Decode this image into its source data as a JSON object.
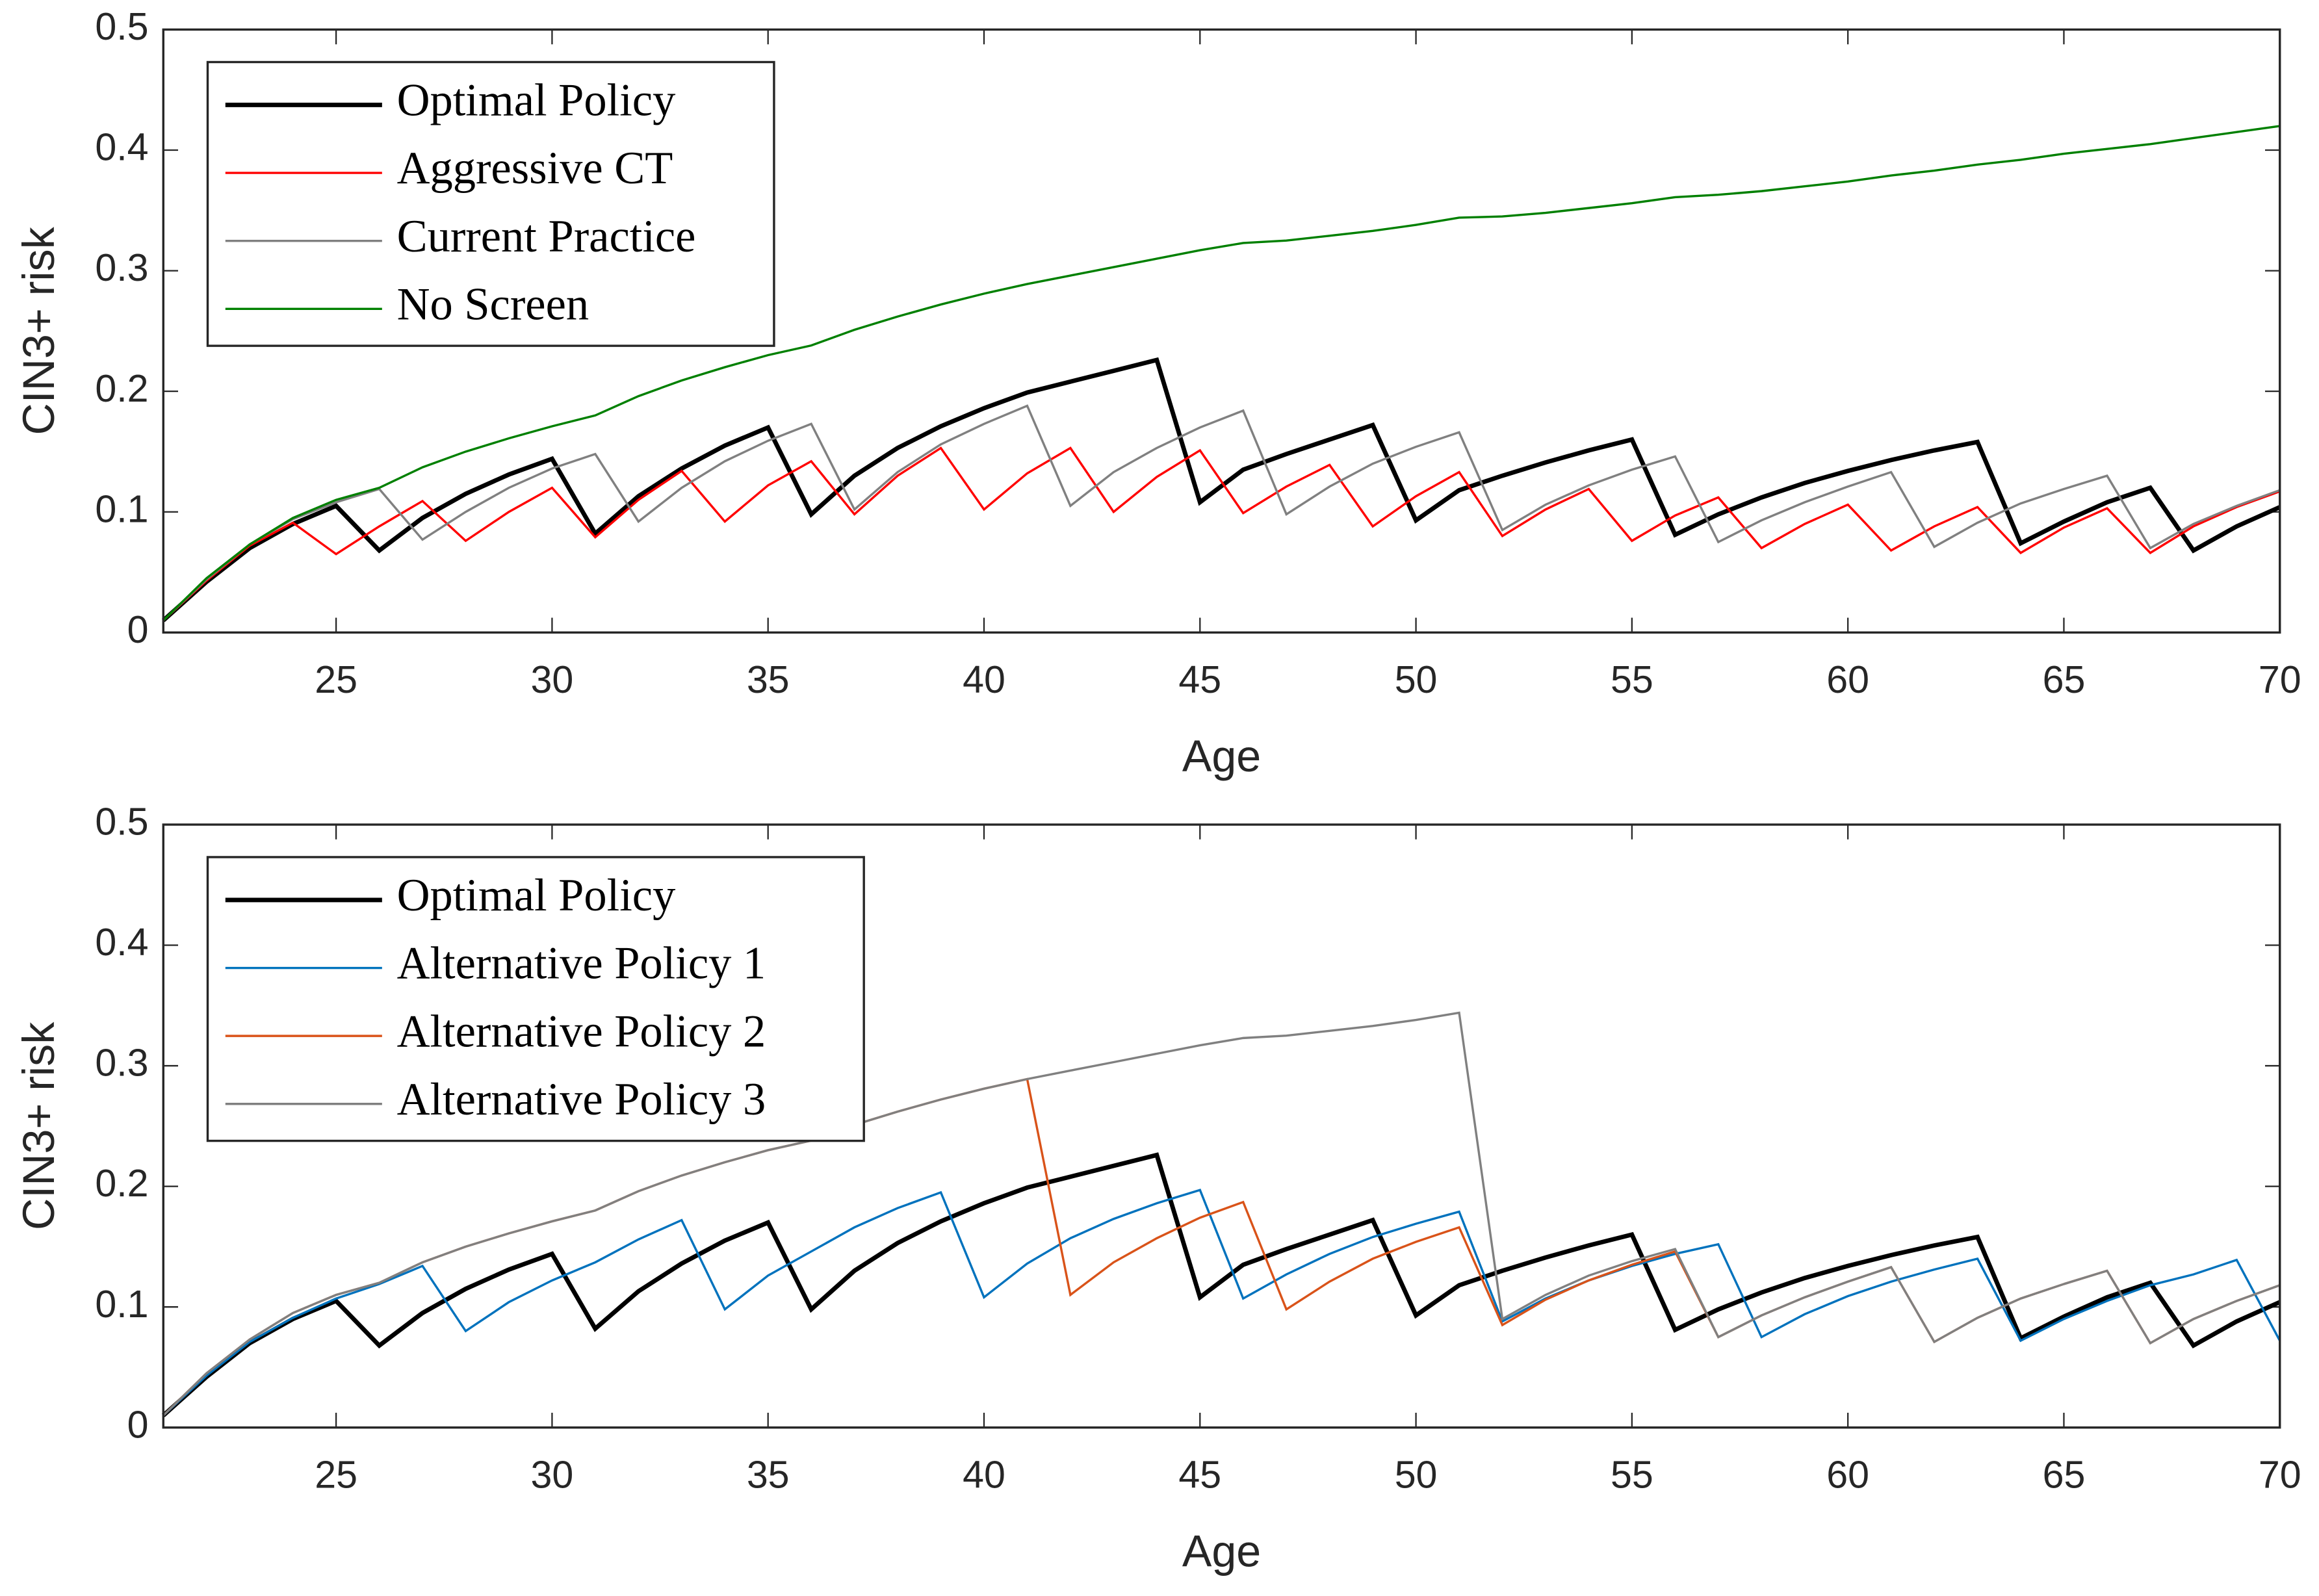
{
  "chart_data": [
    {
      "type": "line",
      "xlabel": "Age",
      "ylabel": "CIN3+ risk",
      "legend": "upper left",
      "xlim": [
        21,
        70
      ],
      "ylim": [
        0,
        0.5
      ],
      "xticks": [
        25,
        30,
        35,
        40,
        45,
        50,
        55,
        60,
        65,
        70
      ],
      "yticks": [
        0,
        0.1,
        0.2,
        0.3,
        0.4,
        0.5
      ],
      "x": [
        21,
        22,
        23,
        24,
        25,
        26,
        27,
        28,
        29,
        30,
        31,
        32,
        33,
        34,
        35,
        36,
        37,
        38,
        39,
        40,
        41,
        42,
        43,
        44,
        45,
        46,
        47,
        48,
        49,
        50,
        51,
        52,
        53,
        54,
        55,
        56,
        57,
        58,
        59,
        60,
        61,
        62,
        63,
        64,
        65,
        66,
        67,
        68,
        69,
        70
      ],
      "series": [
        {
          "name": "Optimal Policy",
          "color": "#000000",
          "width": 3,
          "values": [
            0.01,
            0.042,
            0.07,
            0.09,
            0.105,
            0.068,
            0.095,
            0.115,
            0.131,
            0.144,
            0.082,
            0.113,
            0.136,
            0.155,
            0.17,
            0.098,
            0.13,
            0.153,
            0.171,
            0.186,
            0.199,
            0.208,
            0.217,
            0.226,
            0.108,
            0.135,
            0.148,
            0.16,
            0.172,
            0.093,
            0.118,
            0.13,
            0.141,
            0.151,
            0.16,
            0.081,
            0.098,
            0.112,
            0.124,
            0.134,
            0.143,
            0.151,
            0.158,
            0.074,
            0.092,
            0.108,
            0.12,
            0.068,
            0.088,
            0.104
          ]
        },
        {
          "name": "Aggressive CT",
          "color": "#ff0000",
          "width": 1.5,
          "values": [
            0.01,
            0.043,
            0.072,
            0.091,
            0.065,
            0.088,
            0.109,
            0.076,
            0.1,
            0.12,
            0.079,
            0.11,
            0.134,
            0.092,
            0.122,
            0.142,
            0.098,
            0.13,
            0.153,
            0.102,
            0.132,
            0.153,
            0.1,
            0.129,
            0.151,
            0.099,
            0.121,
            0.139,
            0.088,
            0.113,
            0.133,
            0.08,
            0.102,
            0.119,
            0.076,
            0.097,
            0.112,
            0.07,
            0.09,
            0.106,
            0.068,
            0.088,
            0.104,
            0.066,
            0.087,
            0.103,
            0.066,
            0.088,
            0.104,
            0.117
          ]
        },
        {
          "name": "Current Practice",
          "color": "#808080",
          "width": 1.5,
          "values": [
            0.01,
            0.044,
            0.073,
            0.094,
            0.108,
            0.119,
            0.077,
            0.1,
            0.12,
            0.136,
            0.148,
            0.092,
            0.12,
            0.142,
            0.159,
            0.173,
            0.102,
            0.133,
            0.156,
            0.173,
            0.188,
            0.105,
            0.133,
            0.153,
            0.17,
            0.184,
            0.098,
            0.121,
            0.14,
            0.154,
            0.166,
            0.085,
            0.106,
            0.122,
            0.135,
            0.146,
            0.075,
            0.093,
            0.108,
            0.121,
            0.133,
            0.071,
            0.091,
            0.107,
            0.119,
            0.13,
            0.07,
            0.09,
            0.105,
            0.118
          ]
        },
        {
          "name": "No Screen",
          "color": "#008000",
          "width": 1.5,
          "values": [
            0.01,
            0.045,
            0.073,
            0.095,
            0.11,
            0.12,
            0.137,
            0.15,
            0.161,
            0.171,
            0.18,
            0.196,
            0.209,
            0.22,
            0.23,
            0.238,
            0.251,
            0.262,
            0.272,
            0.281,
            0.289,
            0.296,
            0.303,
            0.31,
            0.317,
            0.323,
            0.325,
            0.329,
            0.333,
            0.338,
            0.344,
            0.345,
            0.348,
            0.352,
            0.356,
            0.361,
            0.363,
            0.366,
            0.37,
            0.374,
            0.379,
            0.383,
            0.388,
            0.392,
            0.397,
            0.401,
            0.405,
            0.41,
            0.415,
            0.42
          ]
        }
      ]
    },
    {
      "type": "line",
      "xlabel": "Age",
      "ylabel": "CIN3+ risk",
      "legend": "upper left",
      "xlim": [
        21,
        70
      ],
      "ylim": [
        0,
        0.5
      ],
      "xticks": [
        25,
        30,
        35,
        40,
        45,
        50,
        55,
        60,
        65,
        70
      ],
      "yticks": [
        0,
        0.1,
        0.2,
        0.3,
        0.4,
        0.5
      ],
      "x": [
        21,
        22,
        23,
        24,
        25,
        26,
        27,
        28,
        29,
        30,
        31,
        32,
        33,
        34,
        35,
        36,
        37,
        38,
        39,
        40,
        41,
        42,
        43,
        44,
        45,
        46,
        47,
        48,
        49,
        50,
        51,
        52,
        53,
        54,
        55,
        56,
        57,
        58,
        59,
        60,
        61,
        62,
        63,
        64,
        65,
        66,
        67,
        68,
        69,
        70
      ],
      "series": [
        {
          "name": "Optimal Policy",
          "color": "#000000",
          "width": 3,
          "values": [
            0.01,
            0.042,
            0.07,
            0.09,
            0.105,
            0.068,
            0.095,
            0.115,
            0.131,
            0.144,
            0.082,
            0.113,
            0.136,
            0.155,
            0.17,
            0.098,
            0.13,
            0.153,
            0.171,
            0.186,
            0.199,
            0.208,
            0.217,
            0.226,
            0.108,
            0.135,
            0.148,
            0.16,
            0.172,
            0.093,
            0.118,
            0.13,
            0.141,
            0.151,
            0.16,
            0.081,
            0.098,
            0.112,
            0.124,
            0.134,
            0.143,
            0.151,
            0.158,
            0.074,
            0.092,
            0.108,
            0.12,
            0.068,
            0.088,
            0.104
          ]
        },
        {
          "name": "Alternative Policy 1",
          "color": "#0072bd",
          "width": 1.5,
          "values": [
            0.01,
            0.043,
            0.071,
            0.091,
            0.107,
            0.119,
            0.134,
            0.08,
            0.104,
            0.122,
            0.137,
            0.156,
            0.172,
            0.098,
            0.126,
            0.146,
            0.166,
            0.182,
            0.195,
            0.108,
            0.136,
            0.157,
            0.173,
            0.186,
            0.197,
            0.107,
            0.127,
            0.144,
            0.158,
            0.169,
            0.179,
            0.088,
            0.107,
            0.122,
            0.134,
            0.144,
            0.152,
            0.075,
            0.094,
            0.109,
            0.121,
            0.131,
            0.14,
            0.072,
            0.09,
            0.105,
            0.118,
            0.127,
            0.139,
            0.072
          ]
        },
        {
          "name": "Alternative Policy 2",
          "color": "#d95319",
          "width": 1.5,
          "values": [
            0.01,
            0.045,
            0.073,
            0.095,
            0.11,
            0.12,
            0.137,
            0.15,
            0.161,
            0.171,
            0.18,
            0.196,
            0.209,
            0.22,
            0.23,
            0.238,
            0.251,
            0.262,
            0.272,
            0.281,
            0.289,
            0.11,
            0.137,
            0.157,
            0.174,
            0.187,
            0.098,
            0.121,
            0.14,
            0.154,
            0.166,
            0.085,
            0.106,
            0.122,
            0.135,
            0.146,
            0.075,
            0.093,
            0.108,
            0.121,
            0.133,
            0.071,
            0.091,
            0.107,
            0.119,
            0.13,
            0.07,
            0.09,
            0.105,
            0.118
          ]
        },
        {
          "name": "Alternative Policy 3",
          "color": "#808080",
          "width": 1.5,
          "values": [
            0.01,
            0.045,
            0.073,
            0.095,
            0.11,
            0.12,
            0.137,
            0.15,
            0.161,
            0.171,
            0.18,
            0.196,
            0.209,
            0.22,
            0.23,
            0.238,
            0.251,
            0.262,
            0.272,
            0.281,
            0.289,
            0.296,
            0.303,
            0.31,
            0.317,
            0.323,
            0.325,
            0.329,
            0.333,
            0.338,
            0.344,
            0.09,
            0.11,
            0.126,
            0.138,
            0.148,
            0.075,
            0.093,
            0.108,
            0.121,
            0.133,
            0.071,
            0.091,
            0.107,
            0.119,
            0.13,
            0.07,
            0.09,
            0.105,
            0.118
          ]
        }
      ]
    }
  ]
}
